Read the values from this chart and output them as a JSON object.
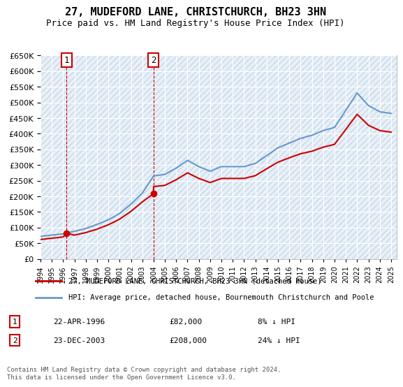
{
  "title": "27, MUDEFORD LANE, CHRISTCHURCH, BH23 3HN",
  "subtitle": "Price paid vs. HM Land Registry's House Price Index (HPI)",
  "legend_label_red": "27, MUDEFORD LANE, CHRISTCHURCH, BH23 3HN (detached house)",
  "legend_label_blue": "HPI: Average price, detached house, Bournemouth Christchurch and Poole",
  "annotation1_label": "1",
  "annotation1_date": "22-APR-1996",
  "annotation1_price": "£82,000",
  "annotation1_hpi": "8% ↓ HPI",
  "annotation2_label": "2",
  "annotation2_date": "23-DEC-2003",
  "annotation2_price": "£208,000",
  "annotation2_hpi": "24% ↓ HPI",
  "footer": "Contains HM Land Registry data © Crown copyright and database right 2024.\nThis data is licensed under the Open Government Licence v3.0.",
  "ylim": [
    0,
    650000
  ],
  "yticks": [
    0,
    50000,
    100000,
    150000,
    200000,
    250000,
    300000,
    350000,
    400000,
    450000,
    500000,
    550000,
    600000,
    650000
  ],
  "xlim_start": 1994.0,
  "xlim_end": 2025.5,
  "sale1_year": 1996.31,
  "sale1_price": 82000,
  "sale2_year": 2003.98,
  "sale2_price": 208000,
  "red_color": "#cc0000",
  "blue_color": "#6699cc",
  "bg_color": "#ddeeff",
  "plot_bg": "#e8f0f8",
  "grid_color": "#ffffff",
  "hatch_color": "#c8d8e8",
  "annotation_box_color": "#cc0000",
  "sale_dot_color": "#cc0000",
  "hpi_years": [
    1994,
    1995,
    1996,
    1997,
    1998,
    1999,
    2000,
    2001,
    2002,
    2003,
    2004,
    2005,
    2006,
    2007,
    2008,
    2009,
    2010,
    2011,
    2012,
    2013,
    2014,
    2015,
    2016,
    2017,
    2018,
    2019,
    2020,
    2021,
    2022,
    2023,
    2024,
    2025
  ],
  "hpi_values": [
    72000,
    76000,
    80000,
    88000,
    97000,
    110000,
    125000,
    145000,
    175000,
    210000,
    265000,
    270000,
    290000,
    315000,
    295000,
    280000,
    295000,
    295000,
    295000,
    305000,
    330000,
    355000,
    370000,
    385000,
    395000,
    410000,
    420000,
    475000,
    530000,
    490000,
    470000,
    465000
  ],
  "red_years": [
    1994,
    1995,
    1996,
    1996.31,
    1997,
    1998,
    1999,
    2000,
    2001,
    2002,
    2003,
    2003.98,
    2004,
    2005,
    2006,
    2007,
    2008,
    2009,
    2010,
    2011,
    2012,
    2013,
    2014,
    2015,
    2016,
    2017,
    2018,
    2019,
    2020,
    2021,
    2022,
    2023,
    2024,
    2025
  ],
  "red_values": [
    62000,
    66000,
    70000,
    82000,
    76000,
    84000,
    95000,
    109000,
    127000,
    152000,
    182000,
    208000,
    231000,
    235000,
    253000,
    275000,
    257000,
    244000,
    257000,
    257000,
    257000,
    266000,
    288000,
    309000,
    323000,
    336000,
    344000,
    357000,
    366000,
    414000,
    462000,
    427000,
    410000,
    405000
  ]
}
